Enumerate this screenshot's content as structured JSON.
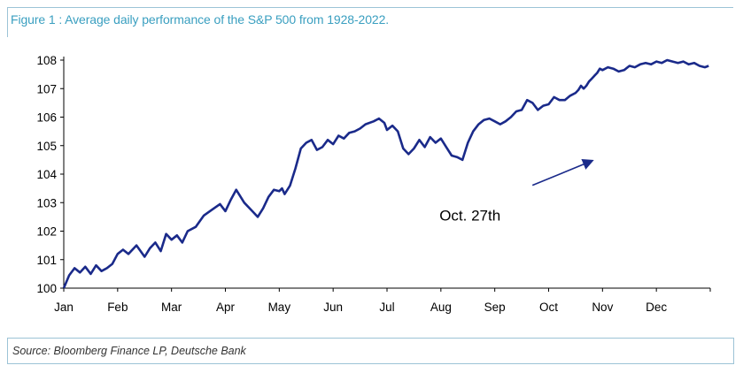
{
  "title": "Figure 1 : Average daily performance of the S&P 500 from 1928-2022.",
  "source": "Source: Bloomberg Finance LP, Deutsche Bank",
  "chart_data": {
    "type": "line",
    "title": "Figure 1 : Average daily performance of the S&P 500 from 1928-2022.",
    "xlabel": "",
    "ylabel": "",
    "ylim": [
      100,
      108
    ],
    "yticks": [
      100,
      101,
      102,
      103,
      104,
      105,
      106,
      107,
      108
    ],
    "xlim": [
      0,
      12
    ],
    "categories": [
      "Jan",
      "Feb",
      "Mar",
      "Apr",
      "May",
      "Jun",
      "Jul",
      "Aug",
      "Sep",
      "Oct",
      "Nov",
      "Dec"
    ],
    "grid": false,
    "legend": "none",
    "color": "#1a2a8a",
    "annotation": {
      "text": "Oct. 27th",
      "x": 9.85,
      "y": 104.6
    },
    "series": [
      {
        "x": [
          0,
          0.1,
          0.2,
          0.3,
          0.4,
          0.5,
          0.6,
          0.7,
          0.8,
          0.9,
          1.0,
          1.1,
          1.2,
          1.35,
          1.5,
          1.6,
          1.7,
          1.8,
          1.9,
          2.0,
          2.1,
          2.2,
          2.3,
          2.45,
          2.6,
          2.75,
          2.9,
          3.0,
          3.1,
          3.2,
          3.35,
          3.5,
          3.6,
          3.7,
          3.8,
          3.9,
          4.0,
          4.05,
          4.1,
          4.2,
          4.3,
          4.4,
          4.5,
          4.6,
          4.7,
          4.8,
          4.9,
          5.0,
          5.1,
          5.2,
          5.3,
          5.4,
          5.5,
          5.6,
          5.75,
          5.85,
          5.95,
          6.0,
          6.1,
          6.2,
          6.3,
          6.4,
          6.5,
          6.6,
          6.7,
          6.8,
          6.9,
          7.0,
          7.1,
          7.2,
          7.3,
          7.4,
          7.5,
          7.6,
          7.7,
          7.8,
          7.9,
          8.0,
          8.1,
          8.2,
          8.3,
          8.4,
          8.5,
          8.6,
          8.7,
          8.8,
          8.9,
          9.0,
          9.1,
          9.2,
          9.3,
          9.4,
          9.5,
          9.55,
          9.6,
          9.65,
          9.7,
          9.75,
          9.8,
          9.85,
          9.9,
          9.95,
          10.0,
          10.1,
          10.2,
          10.3,
          10.4,
          10.5,
          10.6,
          10.7,
          10.8,
          10.9,
          11.0,
          11.1,
          11.2,
          11.3,
          11.4,
          11.5,
          11.6,
          11.7,
          11.8,
          11.9,
          11.97
        ],
        "values": [
          100.0,
          100.45,
          100.7,
          100.55,
          100.75,
          100.5,
          100.8,
          100.6,
          100.7,
          100.85,
          101.2,
          101.35,
          101.2,
          101.5,
          101.1,
          101.4,
          101.6,
          101.3,
          101.9,
          101.7,
          101.85,
          101.6,
          102.0,
          102.15,
          102.55,
          102.75,
          102.95,
          102.7,
          103.1,
          103.45,
          103.0,
          102.7,
          102.5,
          102.8,
          103.2,
          103.45,
          103.4,
          103.5,
          103.3,
          103.6,
          104.2,
          104.9,
          105.1,
          105.2,
          104.85,
          104.95,
          105.2,
          105.05,
          105.35,
          105.25,
          105.45,
          105.5,
          105.6,
          105.75,
          105.85,
          105.95,
          105.8,
          105.55,
          105.7,
          105.5,
          104.9,
          104.7,
          104.9,
          105.2,
          104.95,
          105.3,
          105.1,
          105.25,
          104.95,
          104.65,
          104.6,
          104.5,
          105.1,
          105.5,
          105.75,
          105.9,
          105.95,
          105.85,
          105.75,
          105.85,
          106.0,
          106.2,
          106.25,
          106.6,
          106.5,
          106.25,
          106.4,
          106.45,
          106.7,
          106.6,
          106.6,
          106.75,
          106.85,
          106.95,
          107.1,
          107.0,
          107.1,
          107.25,
          107.35,
          107.45,
          107.55,
          107.7,
          107.65,
          107.75,
          107.7,
          107.6,
          107.65,
          107.8,
          107.75,
          107.85,
          107.9,
          107.85,
          107.95,
          107.9,
          108.0,
          107.95,
          107.9,
          107.95,
          107.85,
          107.9,
          107.8,
          107.75,
          107.8
        ]
      }
    ]
  }
}
